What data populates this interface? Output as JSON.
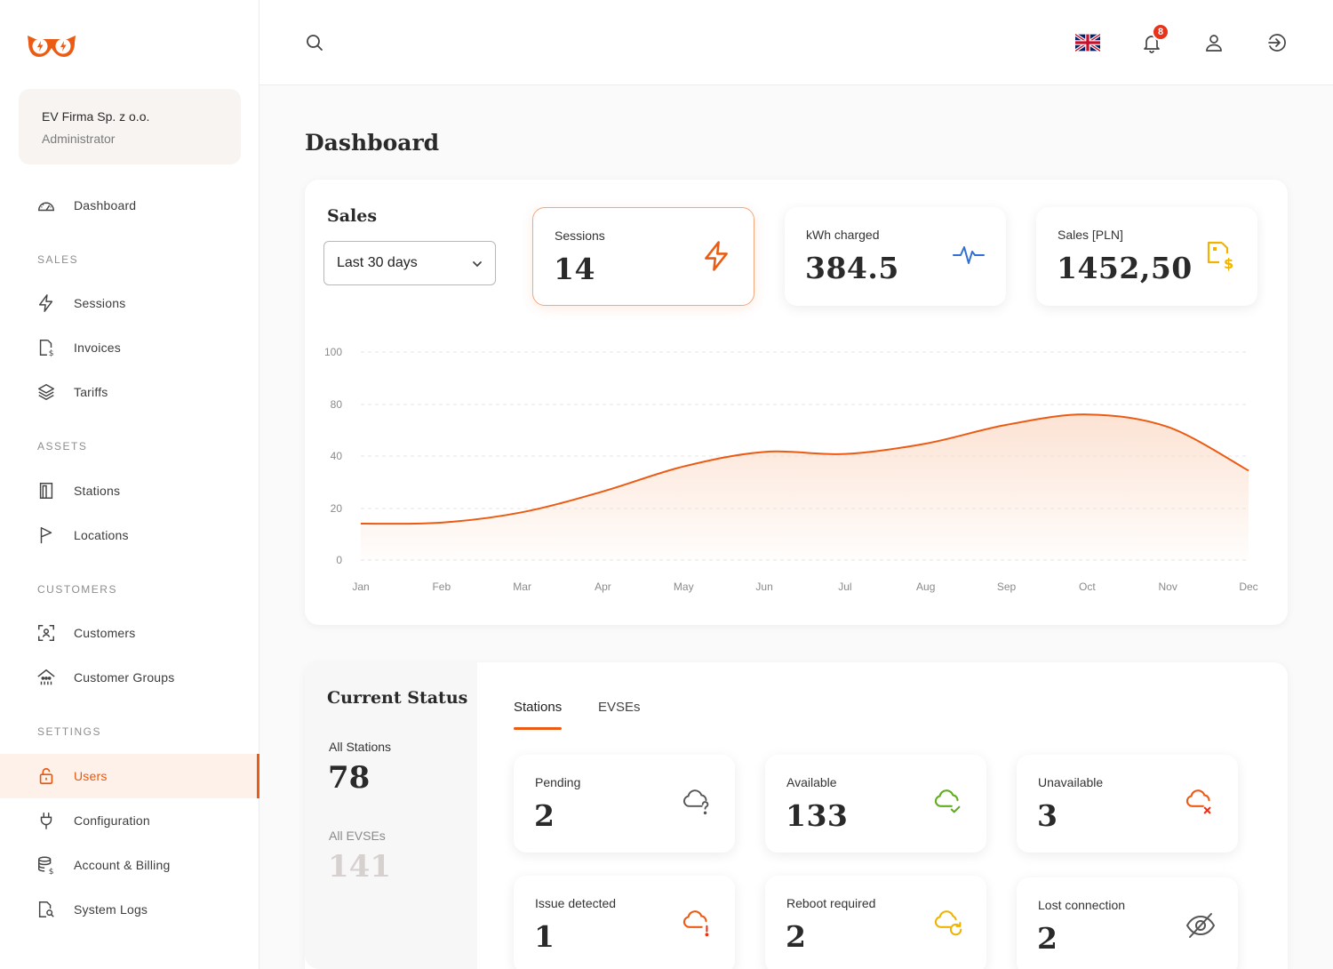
{
  "org": {
    "name": "EV Firma Sp. z o.o.",
    "role": "Administrator"
  },
  "nav": {
    "dashboard": "Dashboard",
    "sales_section": "SALES",
    "sessions": "Sessions",
    "invoices": "Invoices",
    "tariffs": "Tariffs",
    "assets_section": "ASSETS",
    "stations": "Stations",
    "locations": "Locations",
    "customers_section": "CUSTOMERS",
    "customers": "Customers",
    "customer_groups": "Customer Groups",
    "settings_section": "SETTINGS",
    "users": "Users",
    "configuration": "Configuration",
    "account_billing": "Account & Billing",
    "system_logs": "System Logs"
  },
  "topbar": {
    "notifications_count": "8"
  },
  "page": {
    "title": "Dashboard"
  },
  "sales": {
    "title": "Sales",
    "period": "Last 30 days",
    "stats": {
      "sessions": {
        "label": "Sessions",
        "value": "14"
      },
      "kwh": {
        "label": "kWh charged",
        "value": "384.5"
      },
      "revenue": {
        "label": "Sales [PLN]",
        "value": "1452,50"
      }
    }
  },
  "chart_data": {
    "type": "area",
    "x": [
      "Jan",
      "Feb",
      "Mar",
      "Apr",
      "May",
      "Jun",
      "Jul",
      "Aug",
      "Sep",
      "Oct",
      "Nov",
      "Dec"
    ],
    "yticks": [
      0,
      20,
      40,
      80,
      100
    ],
    "ylim": [
      0,
      100
    ],
    "grid": true,
    "series": [
      {
        "values": [
          17.5,
          18,
          23,
          33,
          45,
          52,
          51,
          56,
          65,
          70,
          64,
          43
        ]
      }
    ],
    "colors": {
      "line": "#ec5b13",
      "fill": "#fbd9c5"
    }
  },
  "status": {
    "title": "Current Status",
    "all_stations_label": "All Stations",
    "all_stations_value": "78",
    "all_evses_label": "All EVSEs",
    "all_evses_value": "141",
    "tabs": [
      "Stations",
      "EVSEs"
    ],
    "cards": {
      "pending": {
        "label": "Pending",
        "value": "2"
      },
      "available": {
        "label": "Available",
        "value": "133"
      },
      "unavailable": {
        "label": "Unavailable",
        "value": "3"
      },
      "issue": {
        "label": "Issue detected",
        "value": "1"
      },
      "reboot": {
        "label": "Reboot required",
        "value": "2"
      },
      "lost": {
        "label": "Lost connection",
        "value": "2"
      }
    }
  }
}
